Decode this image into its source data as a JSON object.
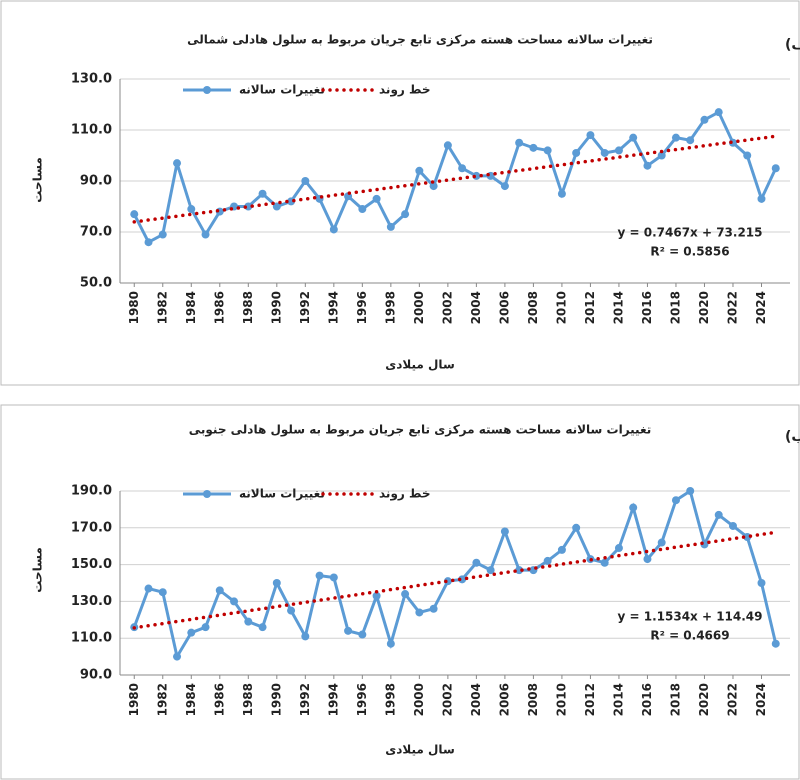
{
  "chart_data": [
    {
      "type": "line",
      "title": "تغییرات سالانه مساحت هسته مرکزی تابع جریان مربوط به سلول هادلی شمالی",
      "panel_label": "الف)",
      "x_label": "سال میلادی",
      "y_label": "مساحت",
      "x": [
        1980,
        1981,
        1982,
        1983,
        1984,
        1985,
        1986,
        1987,
        1988,
        1989,
        1990,
        1991,
        1992,
        1993,
        1994,
        1995,
        1996,
        1997,
        1998,
        1999,
        2000,
        2001,
        2002,
        2003,
        2004,
        2005,
        2006,
        2007,
        2008,
        2009,
        2010,
        2011,
        2012,
        2013,
        2014,
        2015,
        2016,
        2017,
        2018,
        2019,
        2020,
        2021,
        2022,
        2023,
        2024,
        2025
      ],
      "xlim": [
        1979,
        2026
      ],
      "xticks": [
        1980,
        1982,
        1984,
        1986,
        1988,
        1990,
        1992,
        1994,
        1996,
        1998,
        2000,
        2002,
        2004,
        2006,
        2008,
        2010,
        2012,
        2014,
        2016,
        2018,
        2020,
        2022,
        2024
      ],
      "ylim": [
        50,
        130
      ],
      "yticks": [
        {
          "value": 50,
          "label": "50.0"
        },
        {
          "value": 70,
          "label": "70.0"
        },
        {
          "value": 90,
          "label": "90.0"
        },
        {
          "value": 110,
          "label": "110.0"
        },
        {
          "value": 130,
          "label": "130.0"
        }
      ],
      "grid": true,
      "series": [
        {
          "name": "تغییرات سالانه",
          "color": "#5b9bd5",
          "values": [
            77,
            66,
            69,
            97,
            79,
            69,
            78,
            80,
            80,
            85,
            80,
            82,
            90,
            83,
            71,
            84,
            79,
            83,
            72,
            77,
            94,
            88,
            104,
            95,
            92,
            92,
            88,
            105,
            103,
            102,
            85,
            101,
            108,
            101,
            102,
            107,
            96,
            100,
            107,
            106,
            114,
            117,
            105,
            100,
            83,
            95
          ]
        },
        {
          "name": "خط روند",
          "color": "#c00000",
          "style": "dotted",
          "x": [
            1980,
            2025
          ],
          "values": [
            73.96,
            107.56
          ]
        }
      ],
      "annotations": [
        "y = 0.7467x + 73.215",
        "R² = 0.5856"
      ]
    },
    {
      "type": "line",
      "title": "تغییرات سالانه مساحت هسته مرکزی تابع جریان مربوط به سلول هادلی جنوبی",
      "panel_label": "ب)",
      "x_label": "سال میلادی",
      "y_label": "مساحت",
      "x": [
        1980,
        1981,
        1982,
        1983,
        1984,
        1985,
        1986,
        1987,
        1988,
        1989,
        1990,
        1991,
        1992,
        1993,
        1994,
        1995,
        1996,
        1997,
        1998,
        1999,
        2000,
        2001,
        2002,
        2003,
        2004,
        2005,
        2006,
        2007,
        2008,
        2009,
        2010,
        2011,
        2012,
        2013,
        2014,
        2015,
        2016,
        2017,
        2018,
        2019,
        2020,
        2021,
        2022,
        2023,
        2024,
        2025
      ],
      "xlim": [
        1979,
        2026
      ],
      "xticks": [
        1980,
        1982,
        1984,
        1986,
        1988,
        1990,
        1992,
        1994,
        1996,
        1998,
        2000,
        2002,
        2004,
        2006,
        2008,
        2010,
        2012,
        2014,
        2016,
        2018,
        2020,
        2022,
        2024
      ],
      "ylim": [
        90,
        190
      ],
      "yticks": [
        {
          "value": 90,
          "label": "90.0"
        },
        {
          "value": 110,
          "label": "110.0"
        },
        {
          "value": 130,
          "label": "130.0"
        },
        {
          "value": 150,
          "label": "150.0"
        },
        {
          "value": 170,
          "label": "170.0"
        },
        {
          "value": 190,
          "label": "190.0"
        }
      ],
      "grid": true,
      "series": [
        {
          "name": "تغییرات سالانه",
          "color": "#5b9bd5",
          "values": [
            116,
            137,
            135,
            100,
            113,
            116,
            136,
            130,
            119,
            116,
            140,
            125,
            111,
            144,
            143,
            114,
            112,
            133,
            107,
            134,
            124,
            126,
            141,
            142,
            151,
            147,
            168,
            147,
            147,
            152,
            158,
            170,
            153,
            151,
            159,
            181,
            153,
            162,
            185,
            190,
            161,
            177,
            171,
            165,
            140,
            107
          ]
        },
        {
          "name": "خط روند",
          "color": "#c00000",
          "style": "dotted",
          "x": [
            1980,
            2025
          ],
          "values": [
            115.64,
            167.55
          ]
        }
      ],
      "annotations": [
        "y = 1.1534x + 114.49",
        "R² = 0.4669"
      ]
    }
  ]
}
